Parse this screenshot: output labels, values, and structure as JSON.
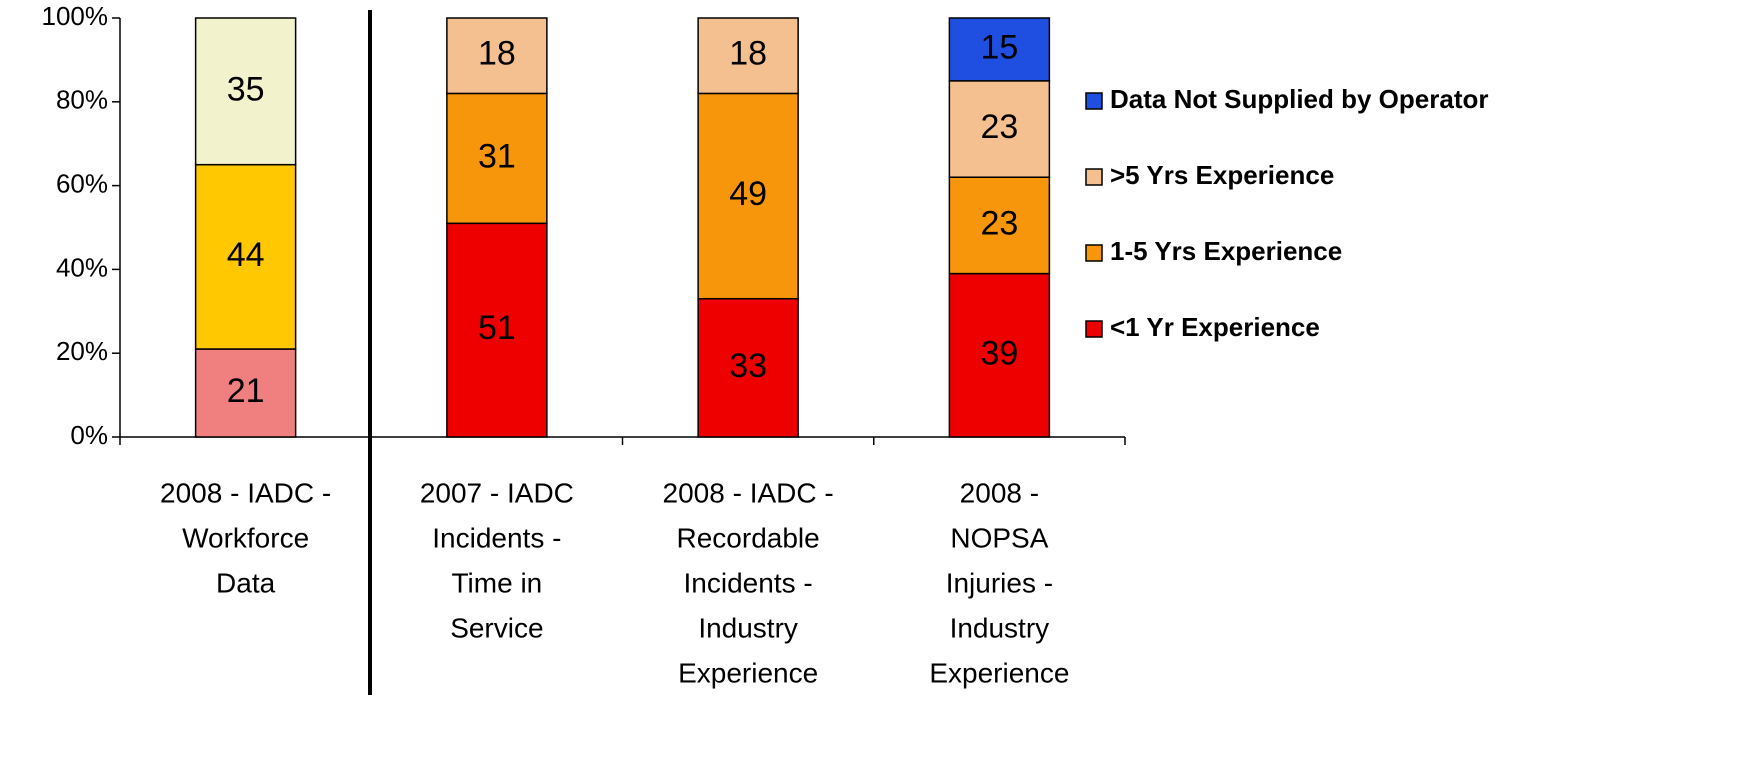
{
  "chart_data": {
    "type": "stacked_bar",
    "categories": [
      [
        "2008 - IADC -",
        "Workforce",
        "Data"
      ],
      [
        "2007 - IADC",
        "Incidents -",
        "Time in",
        "Service"
      ],
      [
        "2008 - IADC -",
        "Recordable",
        "Incidents -",
        "Industry",
        "Experience"
      ],
      [
        "2008 -",
        "NOPSA",
        "Injuries -",
        "Industry",
        "Experience"
      ]
    ],
    "series": [
      {
        "name": "<1 Yr Experience",
        "color": "#ee0000",
        "colors": [
          "#f08080",
          "#ee0000",
          "#ee0000",
          "#ee0000"
        ],
        "values": [
          21,
          51,
          33,
          39
        ]
      },
      {
        "name": "1-5 Yrs Experience",
        "color": "#f7960a",
        "colors": [
          "#ffc800",
          "#f7960a",
          "#f7960a",
          "#f7960a"
        ],
        "values": [
          44,
          31,
          49,
          23
        ]
      },
      {
        "name": ">5 Yrs Experience",
        "color": "#f5c08f",
        "colors": [
          "#f2f2cc",
          "#f5c08f",
          "#f5c08f",
          "#f5c08f"
        ],
        "values": [
          35,
          18,
          18,
          23
        ]
      },
      {
        "name": "Data Not Supplied by Operator",
        "color": "#1f4fe0",
        "colors": [
          "#1f4fe0",
          "#1f4fe0",
          "#1f4fe0",
          "#1f4fe0"
        ],
        "values": [
          null,
          null,
          null,
          15
        ]
      }
    ],
    "ylim": [
      0,
      100
    ],
    "yticks": [
      {
        "value": 0,
        "label": "0%"
      },
      {
        "value": 20,
        "label": "20%"
      },
      {
        "value": 40,
        "label": "40%"
      },
      {
        "value": 60,
        "label": "60%"
      },
      {
        "value": 80,
        "label": "80%"
      },
      {
        "value": 100,
        "label": "100%"
      }
    ],
    "legend": "right"
  }
}
